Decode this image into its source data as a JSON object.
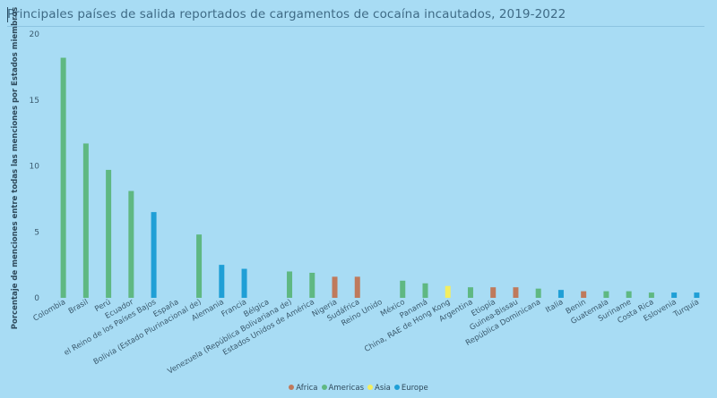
{
  "title": "Principales países de salida reportados de cargamentos de cocaína incautados, 2019-2022",
  "colors": {
    "Africa": "#bf7a5c",
    "Americas": "#5fb882",
    "Asia": "#f3ee60",
    "Europe": "#1f9fd6",
    "axis_text": "#3a5a6e"
  },
  "chart_data": {
    "type": "bar",
    "title": "Principales países de salida reportados de cargamentos de cocaína incautados, 2019-2022",
    "xlabel": "",
    "ylabel": "Porcentaje de menciones entre todas las menciones por Estados miembros",
    "ylim": [
      0,
      20
    ],
    "yticks": [
      0,
      5,
      10,
      15,
      20
    ],
    "legend": [
      "Africa",
      "Americas",
      "Asia",
      "Europe"
    ],
    "categories": [
      "Colombia",
      "Brasil",
      "Perú",
      "Ecuador",
      "el Reino de los Países Bajos",
      "España",
      "Bolivia (Estado Plurinacional de)",
      "Alemania",
      "Francia",
      "Bélgica",
      "Venezuela (República Bolivariana de)",
      "Estados Unidos de América",
      "Nigeria",
      "Sudáfrica",
      "Reino Unido",
      "México",
      "Panamá",
      "China, RAE de Hong Kong",
      "Argentina",
      "Etiopía",
      "Guinea-Bissau",
      "República Dominicana",
      "Italia",
      "Benin",
      "Guatemala",
      "Suriname",
      "Costa Rica",
      "Eslovenia",
      "Turquía"
    ],
    "series": [
      {
        "name": "Africa",
        "values": [
          0,
          0,
          0,
          0,
          0,
          0,
          0,
          0,
          0,
          0,
          0,
          0,
          1.6,
          1.6,
          0,
          0,
          0,
          0,
          0,
          0.8,
          0.8,
          0,
          0,
          0.5,
          0,
          0,
          0,
          0,
          0
        ]
      },
      {
        "name": "Americas",
        "values": [
          18.2,
          11.7,
          9.7,
          8.1,
          0,
          0,
          4.8,
          0,
          0,
          0,
          2.0,
          1.9,
          0,
          0,
          0,
          1.3,
          1.1,
          0,
          0.8,
          0,
          0,
          0.7,
          0,
          0,
          0.5,
          0.5,
          0.4,
          0,
          0
        ]
      },
      {
        "name": "Asia",
        "values": [
          0,
          0,
          0,
          0,
          0,
          0,
          0,
          0,
          0,
          0,
          0,
          0,
          0,
          0,
          0,
          0,
          0,
          0.9,
          0,
          0,
          0,
          0,
          0,
          0,
          0,
          0,
          0,
          0,
          0
        ]
      },
      {
        "name": "Europe",
        "values": [
          0,
          0,
          0,
          0,
          6.5,
          0,
          0,
          2.5,
          2.2,
          0,
          0,
          0,
          0,
          0,
          0,
          0,
          0,
          0,
          0,
          0,
          0,
          0,
          0.6,
          0,
          0,
          0,
          0,
          0.4,
          0.4
        ]
      }
    ]
  }
}
